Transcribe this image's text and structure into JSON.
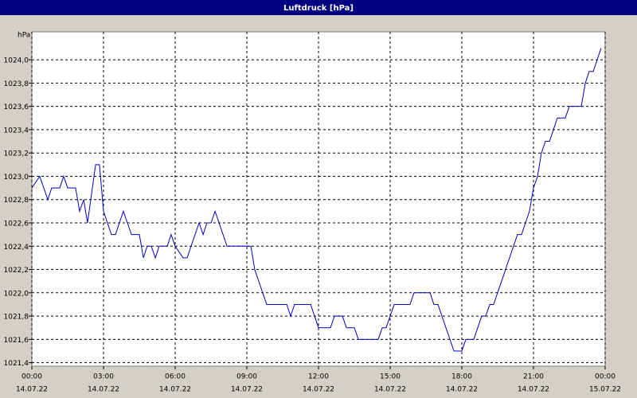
{
  "chart_data": {
    "type": "line",
    "title": "Luftdruck [hPa]",
    "y_label": "hPa",
    "x": [
      0,
      0.33,
      0.67,
      0.83,
      1.17,
      1.33,
      1.5,
      1.83,
      2.0,
      2.17,
      2.33,
      2.67,
      2.83,
      3.0,
      3.33,
      3.5,
      3.83,
      4.17,
      4.5,
      4.67,
      4.83,
      5.0,
      5.17,
      5.33,
      5.67,
      5.83,
      6.0,
      6.33,
      6.5,
      7.0,
      7.17,
      7.33,
      7.5,
      7.67,
      8.17,
      9.17,
      9.33,
      9.83,
      10.67,
      10.83,
      11.0,
      11.67,
      12.0,
      12.5,
      12.67,
      13.0,
      13.17,
      13.5,
      13.67,
      14.5,
      14.67,
      14.83,
      15.17,
      15.83,
      16.0,
      16.67,
      16.83,
      17.0,
      17.67,
      18.0,
      18.17,
      18.5,
      18.83,
      19.0,
      19.17,
      19.33,
      20.33,
      20.5,
      20.83,
      21.0,
      21.17,
      21.33,
      21.5,
      21.67,
      22.0,
      22.33,
      22.5,
      23.0,
      23.17,
      23.33,
      23.5,
      23.83
    ],
    "series": [
      {
        "name": "Luftdruck",
        "color": "#0000c0",
        "values": [
          1022.9,
          1023.0,
          1022.8,
          1022.9,
          1022.9,
          1023.0,
          1022.9,
          1022.9,
          1022.7,
          1022.8,
          1022.6,
          1023.1,
          1023.1,
          1022.7,
          1022.5,
          1022.5,
          1022.7,
          1022.5,
          1022.5,
          1022.3,
          1022.4,
          1022.4,
          1022.3,
          1022.4,
          1022.4,
          1022.5,
          1022.4,
          1022.3,
          1022.3,
          1022.6,
          1022.5,
          1022.6,
          1022.6,
          1022.7,
          1022.4,
          1022.4,
          1022.2,
          1021.9,
          1021.9,
          1021.8,
          1021.9,
          1021.9,
          1021.7,
          1021.7,
          1021.8,
          1021.8,
          1021.7,
          1021.7,
          1021.6,
          1021.6,
          1021.7,
          1021.7,
          1021.9,
          1021.9,
          1022.0,
          1022.0,
          1021.9,
          1021.9,
          1021.5,
          1021.5,
          1021.6,
          1021.6,
          1021.8,
          1021.8,
          1021.9,
          1021.9,
          1022.5,
          1022.5,
          1022.7,
          1022.9,
          1023.0,
          1023.2,
          1023.3,
          1023.3,
          1023.5,
          1023.5,
          1023.6,
          1023.6,
          1023.8,
          1023.9,
          1023.9,
          1024.1
        ]
      }
    ],
    "xlim": [
      0,
      24
    ],
    "xticks": [
      {
        "value": 0,
        "label": "00:00",
        "date": "14.07.22"
      },
      {
        "value": 3,
        "label": "03:00",
        "date": "14.07.22"
      },
      {
        "value": 6,
        "label": "06:00",
        "date": "14.07.22"
      },
      {
        "value": 9,
        "label": "09:00",
        "date": "14.07.22"
      },
      {
        "value": 12,
        "label": "12:00",
        "date": "14.07.22"
      },
      {
        "value": 15,
        "label": "15:00",
        "date": "14.07.22"
      },
      {
        "value": 18,
        "label": "18:00",
        "date": "14.07.22"
      },
      {
        "value": 21,
        "label": "21:00",
        "date": "14.07.22"
      },
      {
        "value": 24,
        "label": "00:00",
        "date": "15.07.22"
      }
    ],
    "ylim": [
      1021.37,
      1024.24
    ],
    "yticks": [
      {
        "value": 1021.4,
        "label": "1021,4"
      },
      {
        "value": 1021.6,
        "label": "1021,6"
      },
      {
        "value": 1021.8,
        "label": "1021,8"
      },
      {
        "value": 1022.0,
        "label": "1022,0"
      },
      {
        "value": 1022.2,
        "label": "1022,2"
      },
      {
        "value": 1022.4,
        "label": "1022,4"
      },
      {
        "value": 1022.6,
        "label": "1022,6"
      },
      {
        "value": 1022.8,
        "label": "1022,8"
      },
      {
        "value": 1023.0,
        "label": "1023,0"
      },
      {
        "value": 1023.2,
        "label": "1023,2"
      },
      {
        "value": 1023.4,
        "label": "1023,4"
      },
      {
        "value": 1023.6,
        "label": "1023,6"
      },
      {
        "value": 1023.8,
        "label": "1023,8"
      },
      {
        "value": 1024.0,
        "label": "1024,0"
      }
    ],
    "grid": true
  }
}
